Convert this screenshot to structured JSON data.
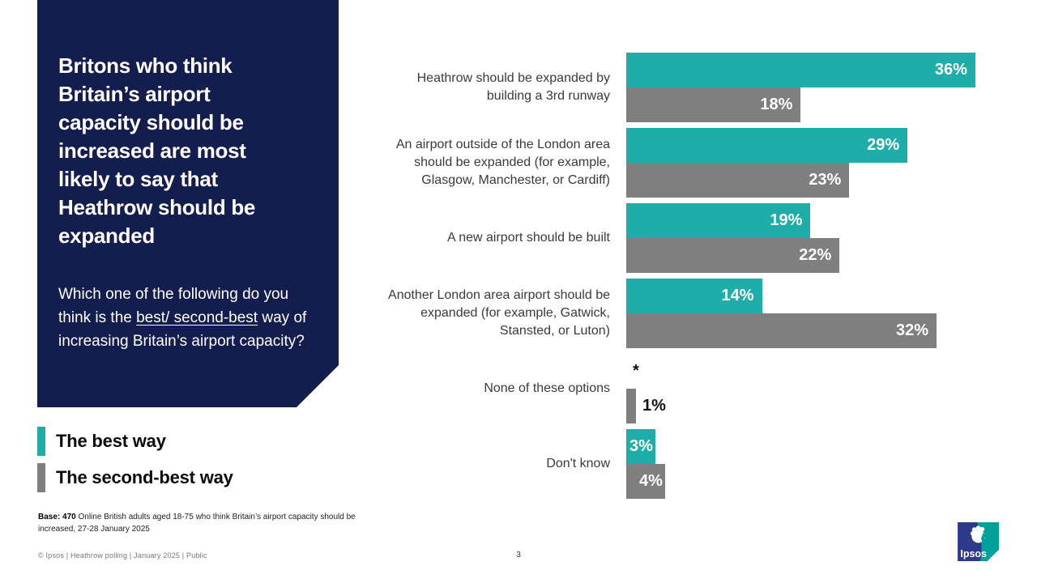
{
  "slide": {
    "title": "Britons who think Britain’s airport capacity should be increased are most likely to say that Heathrow should be expanded",
    "question": {
      "prefix": "Which one of the following do you think is the ",
      "underlined": "best/ second-best",
      "suffix": " way of increasing Britain’s airport capacity?"
    },
    "base_note": {
      "bold": "Base: 470",
      "text": " Online British adults aged 18-75 who think Britain’s airport capacity should be increased, 27-28 January 2025"
    },
    "footer": "© Ipsos | Heathrow polling | January 2025 | Public",
    "page_number": "3",
    "logo_text": "Ipsos"
  },
  "colors": {
    "navy": "#141e4e",
    "teal": "#1fada9",
    "gray": "#7f7f7f",
    "logo_blue": "#2d3a8c",
    "logo_teal": "#00a19a"
  },
  "chart_data": {
    "type": "bar",
    "orientation": "horizontal",
    "title": "",
    "xlabel": "",
    "ylabel": "",
    "xlim": [
      0,
      36
    ],
    "value_unit": "percent",
    "grid": false,
    "legend_position": "bottom-left",
    "categories": [
      "Heathrow should be expanded by building a 3rd runway",
      "An airport outside of the London area should be expanded (for example, Glasgow, Manchester, or Cardiff)",
      "A new airport should be built",
      "Another London area airport should be expanded (for example, Gatwick, Stansted, or Luton)",
      "None of these options",
      "Don't know"
    ],
    "series": [
      {
        "name": "The best way",
        "color": "#1fada9",
        "values": [
          36,
          29,
          19,
          14,
          0,
          3
        ],
        "display_labels": [
          "36%",
          "29%",
          "19%",
          "14%",
          "*",
          "3%"
        ]
      },
      {
        "name": "The second-best way",
        "color": "#7f7f7f",
        "values": [
          18,
          23,
          22,
          32,
          1,
          4
        ],
        "display_labels": [
          "18%",
          "23%",
          "22%",
          "32%",
          "1%",
          "4%"
        ]
      }
    ]
  }
}
